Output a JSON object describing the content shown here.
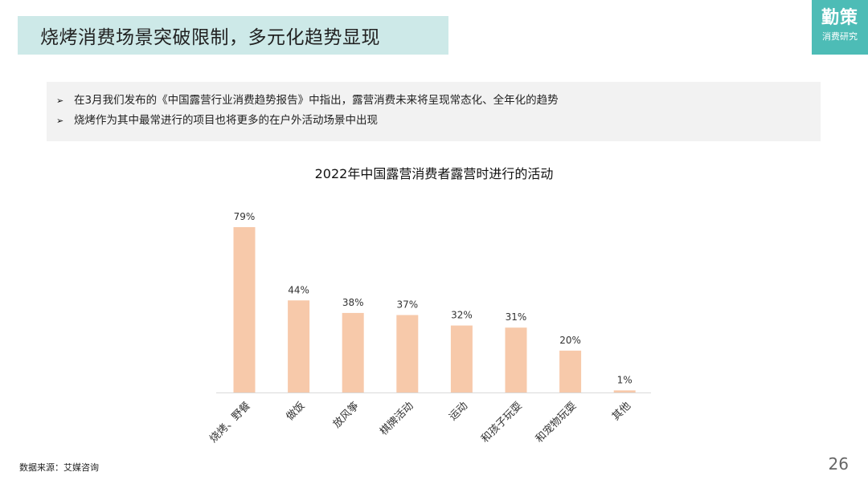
{
  "header": {
    "title": "烧烤消费场景突破限制，多元化趋势显现"
  },
  "logo": {
    "main": "勤策",
    "sub": "消费研究"
  },
  "bullets": [
    {
      "marker": "➢",
      "text": "在3月我们发布的《中国露营行业消费趋势报告》中指出，露营消费未来将呈现常态化、全年化的趋势"
    },
    {
      "marker": "➢",
      "text": "烧烤作为其中最常进行的项目也将更多的在户外活动场景中出现"
    }
  ],
  "chart_data": {
    "type": "bar",
    "title": "2022年中国露营消费者露营时进行的活动",
    "categories": [
      "烧烤、野餐",
      "做饭",
      "放风筝",
      "棋牌活动",
      "运动",
      "和孩子玩耍",
      "和宠物玩耍",
      "其他"
    ],
    "values": [
      79,
      44,
      38,
      37,
      32,
      31,
      20,
      1
    ],
    "value_labels": [
      "79%",
      "44%",
      "38%",
      "37%",
      "32%",
      "31%",
      "20%",
      "1%"
    ],
    "ylim": [
      0,
      79
    ],
    "grid": false,
    "bar_color": "#f7c9aa",
    "axis_color": "#d9d9d9"
  },
  "footer": {
    "source": "数据来源：艾媒咨询",
    "page": "26"
  },
  "colors": {
    "title_bg": "#cde9e8",
    "logo_bg": "#4dbcb6",
    "bullet_bg": "#f2f2f2"
  }
}
